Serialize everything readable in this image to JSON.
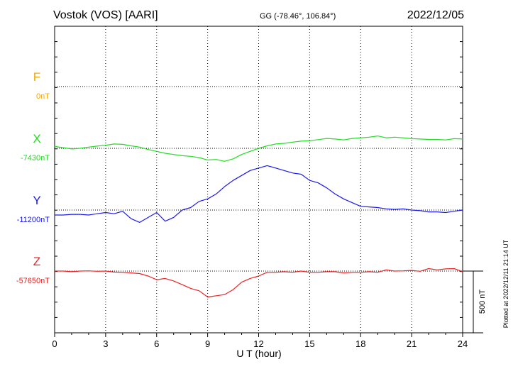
{
  "header": {
    "station": "Vostok (VOS)  [AARI]",
    "coords": "GG (-78.46°, 106.84°)",
    "date": "2022/12/05",
    "plotted": "Plotted at 2022/12/11 21:14 UT"
  },
  "chart_data": {
    "type": "line",
    "title": "Vostok (VOS)  [AARI]",
    "xlabel": "U T (hour)",
    "xlim": [
      0,
      24
    ],
    "xticks": [
      0,
      3,
      6,
      9,
      12,
      15,
      18,
      21,
      24
    ],
    "scale_bar": {
      "label": "500 nT",
      "value": 500
    },
    "grid": true,
    "channels": [
      {
        "name": "F",
        "baseline_label": "0nT",
        "baseline": 0,
        "color": "#f5a800",
        "x": [],
        "values": []
      },
      {
        "name": "X",
        "baseline_label": "-7430nT",
        "baseline": -7430,
        "color": "#22dd22",
        "x": [
          0,
          0.5,
          1,
          1.5,
          2,
          2.5,
          3,
          3.5,
          4,
          4.5,
          5,
          5.5,
          6,
          6.5,
          7,
          7.5,
          8,
          8.5,
          9,
          9.5,
          10,
          10.5,
          11,
          11.5,
          12,
          12.5,
          13,
          13.5,
          14,
          14.5,
          15,
          15.5,
          16,
          16.5,
          17,
          17.5,
          18,
          18.5,
          19,
          19.5,
          20,
          20.5,
          21,
          21.5,
          22,
          22.5,
          23,
          23.5,
          24
        ],
        "values": [
          -7415,
          -7425,
          -7435,
          -7430,
          -7420,
          -7412,
          -7405,
          -7395,
          -7398,
          -7410,
          -7420,
          -7440,
          -7455,
          -7470,
          -7480,
          -7490,
          -7495,
          -7505,
          -7525,
          -7520,
          -7535,
          -7515,
          -7480,
          -7455,
          -7430,
          -7410,
          -7395,
          -7390,
          -7380,
          -7372,
          -7368,
          -7360,
          -7350,
          -7355,
          -7362,
          -7350,
          -7345,
          -7340,
          -7330,
          -7345,
          -7340,
          -7345,
          -7352,
          -7355,
          -7358,
          -7358,
          -7362,
          -7352,
          -7355
        ]
      },
      {
        "name": "Y",
        "baseline_label": "-11200nT",
        "baseline": -11200,
        "color": "#1a1aee",
        "x": [
          0,
          0.5,
          1,
          1.5,
          2,
          2.5,
          3,
          3.5,
          4,
          4.5,
          5,
          5.5,
          6,
          6.5,
          7,
          7.5,
          8,
          8.5,
          9,
          9.5,
          10,
          10.5,
          11,
          11.5,
          12,
          12.5,
          13,
          13.5,
          14,
          14.5,
          15,
          15.5,
          16,
          16.5,
          17,
          17.5,
          18,
          18.5,
          19,
          19.5,
          20,
          20.5,
          21,
          21.5,
          22,
          22.5,
          23,
          23.5,
          24
        ],
        "values": [
          -11240,
          -11240,
          -11235,
          -11235,
          -11240,
          -11230,
          -11220,
          -11230,
          -11210,
          -11270,
          -11300,
          -11260,
          -11220,
          -11290,
          -11260,
          -11200,
          -11180,
          -11130,
          -11110,
          -11070,
          -11010,
          -10960,
          -10920,
          -10880,
          -10860,
          -10840,
          -10860,
          -10880,
          -10900,
          -10910,
          -10960,
          -10980,
          -11020,
          -11070,
          -11110,
          -11140,
          -11170,
          -11175,
          -11180,
          -11190,
          -11195,
          -11190,
          -11200,
          -11205,
          -11215,
          -11215,
          -11220,
          -11210,
          -11200
        ]
      },
      {
        "name": "Z",
        "baseline_label": "-57650nT",
        "baseline": -57650,
        "color": "#ee2222",
        "x": [
          0,
          0.5,
          1,
          1.5,
          2,
          2.5,
          3,
          3.5,
          4,
          4.5,
          5,
          5.5,
          6,
          6.5,
          7,
          7.5,
          8,
          8.5,
          9,
          9.5,
          10,
          10.5,
          11,
          11.5,
          12,
          12.5,
          13,
          13.5,
          14,
          14.5,
          15,
          15.5,
          16,
          16.5,
          17,
          17.5,
          18,
          18.5,
          19,
          19.5,
          20,
          20.5,
          21,
          21.5,
          22,
          22.5,
          23,
          23.5,
          24
        ],
        "values": [
          -57650,
          -57650,
          -57655,
          -57650,
          -57648,
          -57652,
          -57650,
          -57658,
          -57660,
          -57665,
          -57670,
          -57690,
          -57720,
          -57710,
          -57730,
          -57760,
          -57790,
          -57810,
          -57860,
          -57850,
          -57840,
          -57800,
          -57740,
          -57710,
          -57690,
          -57660,
          -57660,
          -57655,
          -57660,
          -57650,
          -57660,
          -57660,
          -57655,
          -57655,
          -57665,
          -57660,
          -57660,
          -57655,
          -57660,
          -57640,
          -57650,
          -57648,
          -57645,
          -57652,
          -57630,
          -57640,
          -57632,
          -57630,
          -57655
        ]
      }
    ]
  }
}
